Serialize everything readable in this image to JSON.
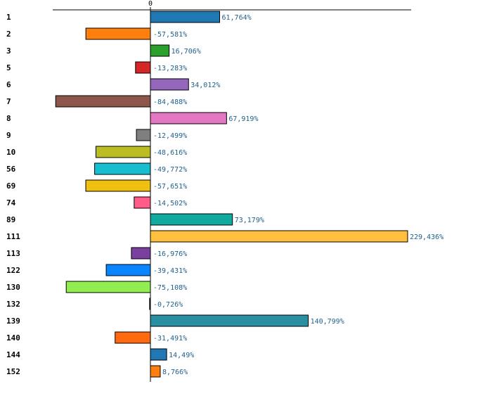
{
  "chart_data": {
    "type": "bar",
    "orientation": "horizontal",
    "title": "",
    "xlabel": "",
    "ylabel": "",
    "xlim": [
      -100,
      265
    ],
    "zero_tick_label": "0",
    "categories": [
      "1",
      "2",
      "3",
      "5",
      "6",
      "7",
      "8",
      "9",
      "10",
      "56",
      "69",
      "74",
      "89",
      "111",
      "113",
      "122",
      "130",
      "132",
      "139",
      "140",
      "144",
      "152"
    ],
    "values": [
      61.764,
      -57.581,
      16.706,
      -13.283,
      34.012,
      -84.488,
      67.919,
      -12.499,
      -48.616,
      -49.772,
      -57.651,
      -14.502,
      73.179,
      229.436,
      -16.976,
      -39.431,
      -75.108,
      -0.726,
      140.799,
      -31.491,
      14.49,
      8.766
    ],
    "value_labels": [
      "61,764%",
      "-57,581%",
      "16,706%",
      "-13,283%",
      "34,012%",
      "-84,488%",
      "67,919%",
      "-12,499%",
      "-48,616%",
      "-49,772%",
      "-57,651%",
      "-14,502%",
      "73,179%",
      "229,436%",
      "-16,976%",
      "-39,431%",
      "-75,108%",
      "-0,726%",
      "140,799%",
      "-31,491%",
      "14,49%",
      "8,766%"
    ],
    "colors": [
      "#1f77b4",
      "#ff7f0e",
      "#2ca02c",
      "#d62728",
      "#9467bd",
      "#8c564b",
      "#e377c2",
      "#7f7f7f",
      "#bcbd22",
      "#17becf",
      "#f0c010",
      "#ff5c8a",
      "#11aaa0",
      "#ffc040",
      "#7b3f9e",
      "#0a84ff",
      "#90ee50",
      "#1a1a1a",
      "#2a8fa0",
      "#ff6a10",
      "#1f77b4",
      "#ff7f0e"
    ]
  }
}
